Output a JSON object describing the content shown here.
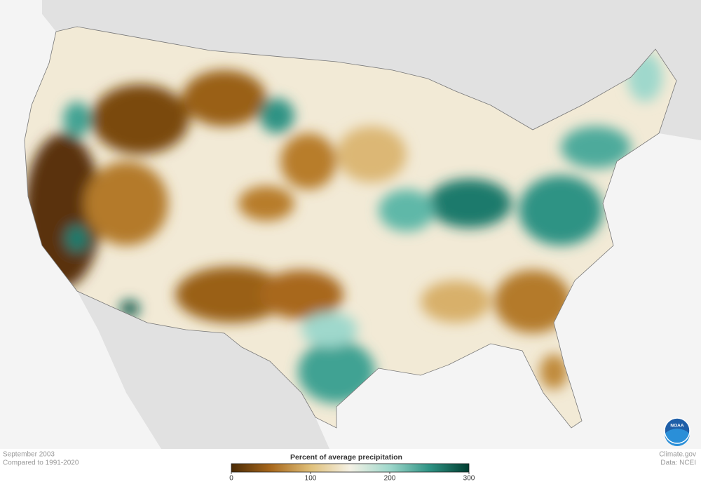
{
  "caption": {
    "period": "September 2003",
    "baseline": "Compared to 1991-2020"
  },
  "legend": {
    "title": "Percent of average precipitation",
    "range": [
      0,
      300
    ],
    "ticks": [
      0,
      100,
      200,
      300
    ],
    "colors": [
      "#4a2a05",
      "#a8681c",
      "#e0c07a",
      "#f5f2e6",
      "#9fd8cc",
      "#2e9384",
      "#003d30"
    ]
  },
  "credits": {
    "site": "Climate.gov",
    "source": "Data: NCEI",
    "logo": "NOAA"
  }
}
